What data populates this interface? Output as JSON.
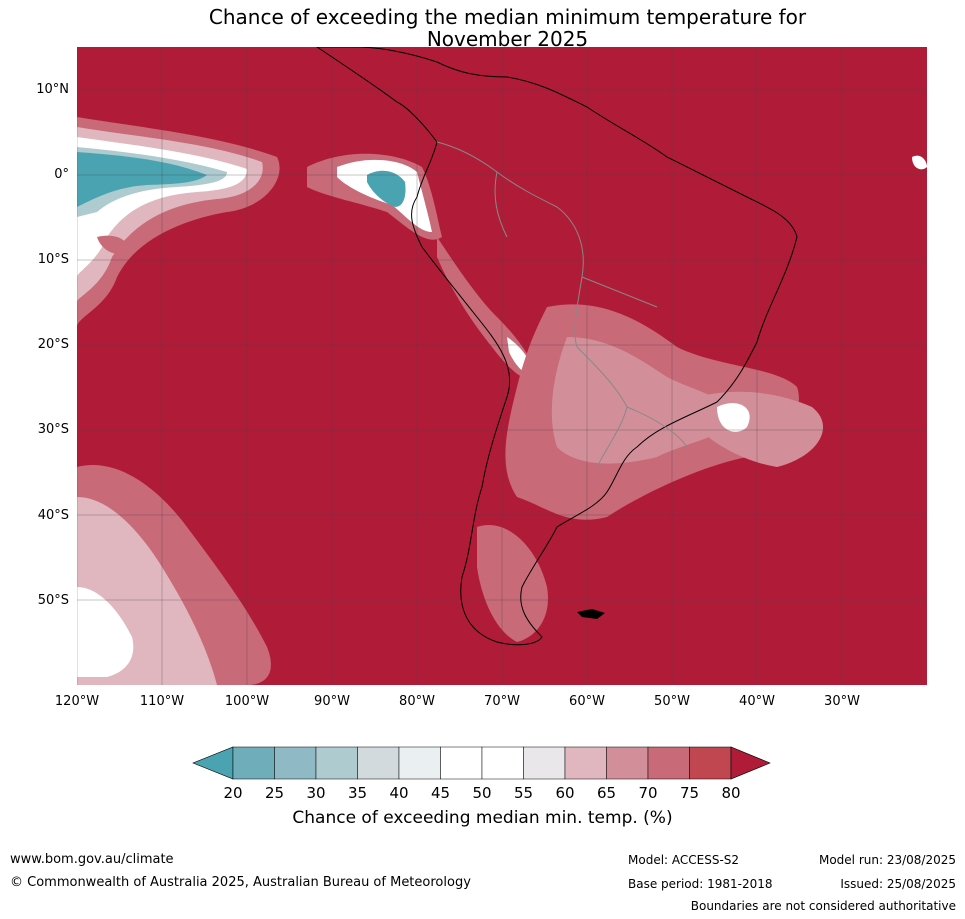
{
  "title": {
    "line1": "Chance of exceeding the median minimum temperature for",
    "line2": "November 2025"
  },
  "axes": {
    "lat_labels": [
      "10°N",
      "0°",
      "10°S",
      "20°S",
      "30°S",
      "40°S",
      "50°S"
    ],
    "lon_labels": [
      "120°W",
      "110°W",
      "100°W",
      "90°W",
      "80°W",
      "70°W",
      "60°W",
      "50°W",
      "40°W",
      "30°W"
    ]
  },
  "legend": {
    "ticks": [
      "20",
      "25",
      "30",
      "35",
      "40",
      "45",
      "50",
      "55",
      "60",
      "65",
      "70",
      "75",
      "80"
    ],
    "colors": [
      "#4aa3b1",
      "#6fadba",
      "#8fbac5",
      "#aecbd0",
      "#d2dadd",
      "#eaf0f2",
      "#ffffff",
      "#ffffff",
      "#e9e7e9",
      "#e0b7bf",
      "#d38f99",
      "#c86a78",
      "#c0464f",
      "#b01c38"
    ],
    "label": "Chance of exceeding median min. temp. (%)"
  },
  "footer": {
    "website": "www.bom.gov.au/climate",
    "copyright": "© Commonwealth of Australia 2025, Australian Bureau of Meteorology",
    "model": "Model: ACCESS-S2",
    "base_period": "Base period: 1981-2018",
    "model_run": "Model run: 23/08/2025",
    "issued": "Issued: 25/08/2025",
    "disclaimer": "Boundaries are not considered authoritative"
  }
}
